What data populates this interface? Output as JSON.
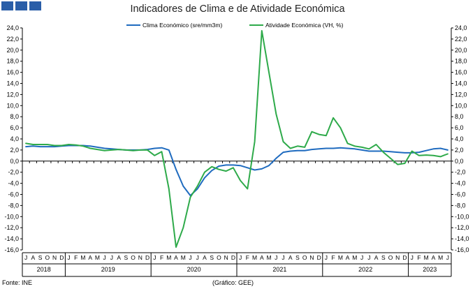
{
  "chart_data": {
    "type": "line",
    "title": "Indicadores de Clima e de Atividade Económica",
    "ylim": [
      -16,
      24
    ],
    "yticks": [
      "24,0",
      "22,0",
      "20,0",
      "18,0",
      "16,0",
      "14,0",
      "12,0",
      "10,0",
      "8,0",
      "6,0",
      "4,0",
      "2,0",
      "0,0",
      "-2,0",
      "-4,0",
      "-6,0",
      "-8,0",
      "-10,0",
      "-12,0",
      "-14,0",
      "-16,0"
    ],
    "x": [
      "2018-07",
      "2018-08",
      "2018-09",
      "2018-10",
      "2018-11",
      "2018-12",
      "2019-01",
      "2019-02",
      "2019-03",
      "2019-04",
      "2019-05",
      "2019-06",
      "2019-07",
      "2019-08",
      "2019-09",
      "2019-10",
      "2019-11",
      "2019-12",
      "2020-01",
      "2020-02",
      "2020-03",
      "2020-04",
      "2020-05",
      "2020-06",
      "2020-07",
      "2020-08",
      "2020-09",
      "2020-10",
      "2020-11",
      "2020-12",
      "2021-01",
      "2021-02",
      "2021-03",
      "2021-04",
      "2021-05",
      "2021-06",
      "2021-07",
      "2021-08",
      "2021-09",
      "2021-10",
      "2021-11",
      "2021-12",
      "2022-01",
      "2022-02",
      "2022-03",
      "2022-04",
      "2022-05",
      "2022-06",
      "2022-07",
      "2022-08",
      "2022-09",
      "2022-10",
      "2022-11",
      "2022-12",
      "2023-01",
      "2023-02",
      "2023-03",
      "2023-04",
      "2023-05",
      "2023-06"
    ],
    "month_labels": [
      "J",
      "A",
      "S",
      "O",
      "N",
      "D",
      "J",
      "F",
      "M",
      "A",
      "M",
      "J",
      "J",
      "A",
      "S",
      "O",
      "N",
      "D",
      "J",
      "F",
      "M",
      "A",
      "M",
      "J",
      "J",
      "A",
      "S",
      "O",
      "N",
      "D",
      "J",
      "F",
      "M",
      "A",
      "M",
      "J",
      "J",
      "A",
      "S",
      "O",
      "N",
      "D",
      "J",
      "F",
      "M",
      "A",
      "M",
      "J",
      "J",
      "A",
      "S",
      "O",
      "N",
      "D",
      "J",
      "F",
      "M",
      "A",
      "M",
      "J"
    ],
    "years": [
      {
        "label": "2018",
        "start": 0,
        "end": 5
      },
      {
        "label": "2019",
        "start": 6,
        "end": 17
      },
      {
        "label": "2020",
        "start": 18,
        "end": 29
      },
      {
        "label": "2021",
        "start": 30,
        "end": 41
      },
      {
        "label": "2022",
        "start": 42,
        "end": 53
      },
      {
        "label": "2023",
        "start": 54,
        "end": 59
      }
    ],
    "series": [
      {
        "name": "Clima Económico (sre/mm3m)",
        "color": "#1f6bbf",
        "values": [
          2.6,
          2.7,
          2.6,
          2.6,
          2.6,
          2.7,
          2.8,
          2.8,
          2.8,
          2.7,
          2.5,
          2.3,
          2.2,
          2.1,
          2.0,
          2.0,
          2.0,
          2.1,
          2.3,
          2.4,
          2.0,
          -1.5,
          -4.5,
          -6.2,
          -5.0,
          -3.0,
          -1.7,
          -0.9,
          -0.7,
          -0.7,
          -0.8,
          -1.2,
          -1.6,
          -1.4,
          -0.8,
          0.5,
          1.6,
          1.8,
          1.9,
          1.9,
          2.1,
          2.2,
          2.3,
          2.3,
          2.4,
          2.3,
          2.2,
          2.0,
          1.8,
          1.8,
          1.8,
          1.7,
          1.6,
          1.5,
          1.5,
          1.6,
          1.9,
          2.2,
          2.3,
          2.0
        ]
      },
      {
        "name": "Atividade Económica (VH, %)",
        "color": "#2eaa4a",
        "values": [
          3.2,
          3.0,
          3.0,
          3.0,
          2.8,
          2.8,
          3.0,
          2.9,
          2.7,
          2.3,
          2.1,
          1.9,
          2.0,
          2.1,
          2.0,
          1.9,
          2.0,
          2.0,
          1.0,
          1.7,
          -5.0,
          -15.5,
          -12.0,
          -6.5,
          -4.5,
          -2.0,
          -1.0,
          -1.5,
          -1.8,
          -1.2,
          -3.5,
          -5.0,
          3.5,
          23.5,
          16.0,
          8.5,
          3.5,
          2.3,
          2.7,
          2.5,
          5.3,
          4.8,
          4.6,
          7.8,
          6.0,
          3.2,
          2.7,
          2.5,
          2.2,
          3.0,
          1.6,
          0.5,
          -0.6,
          -0.4,
          1.8,
          1.0,
          1.1,
          1.0,
          0.8,
          1.3
        ]
      }
    ]
  },
  "footer": {
    "source": "Fonte: INE",
    "credit": "(Gráfico: GEE)"
  }
}
